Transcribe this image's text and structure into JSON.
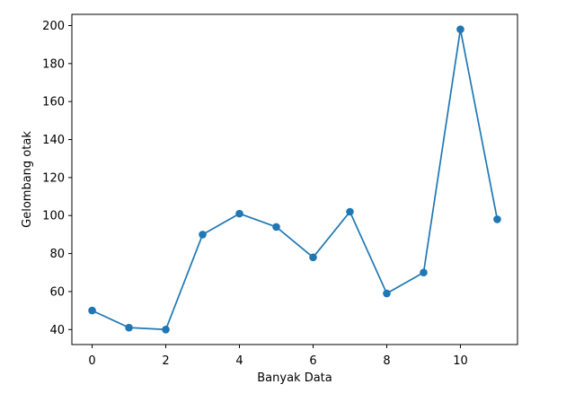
{
  "chart_data": {
    "type": "line",
    "title": "",
    "xlabel": "Banyak Data",
    "ylabel": "Gelombang otak",
    "x": [
      0,
      1,
      2,
      3,
      4,
      5,
      6,
      7,
      8,
      9,
      10,
      11
    ],
    "series": [
      {
        "values": [
          50,
          41,
          40,
          90,
          101,
          94,
          78,
          102,
          59,
          70,
          198,
          98
        ],
        "color": "#1f77b4",
        "marker": "circle"
      }
    ],
    "xlim": [
      -0.55,
      11.55
    ],
    "ylim": [
      32.1,
      205.9
    ],
    "xticks": [
      0,
      2,
      4,
      6,
      8,
      10
    ],
    "yticks": [
      40,
      60,
      80,
      100,
      120,
      140,
      160,
      180,
      200
    ],
    "grid": false,
    "legend": false
  }
}
